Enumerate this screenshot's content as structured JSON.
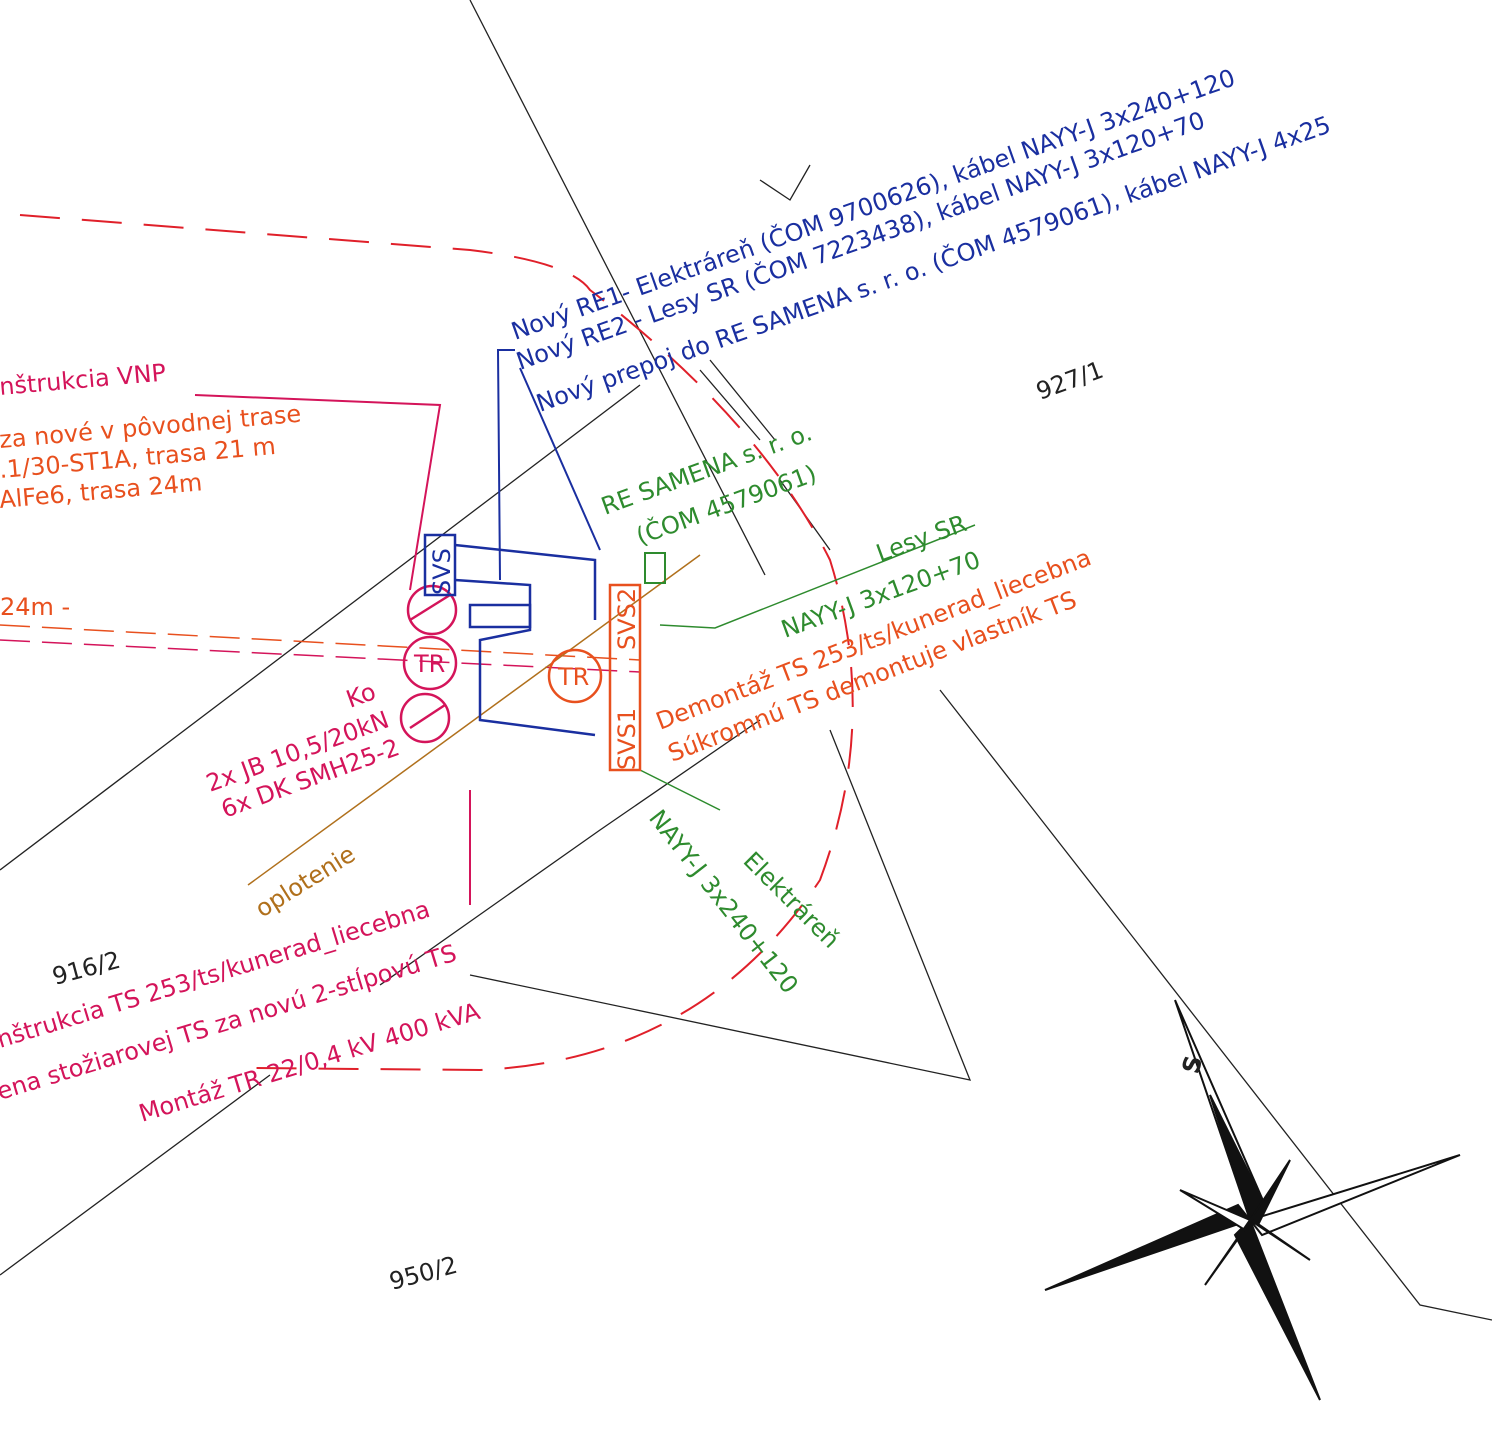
{
  "cables": {
    "line1": "Nový RE1- Elektráreň (ČOM 9700626), kábel NAYY-J 3x240+120",
    "line2": "Nový RE2 - Lesy SR (ČOM 7223438), kábel NAYY-J 3x120+70",
    "line3": "Nový prepoj do RE SAMENA s. r. o. (ČOM 4579061), kábel NAYY-J 4x25"
  },
  "parcels": {
    "p1": "927/1",
    "p2": "916/2",
    "p3": "950/2"
  },
  "vnp": {
    "lines": [
      "nštrukcia VNP",
      "za nové v pôvodnej trase",
      ".1/30-ST1A, trasa 21 m",
      "AlFe6, trasa 24m"
    ],
    "route": "24m -"
  },
  "samena": {
    "name": "RE SAMENA s. r. o.",
    "code": "(ČOM 4579061)"
  },
  "lesy": {
    "name": "Lesy SR",
    "cable": "NAYY-J 3x120+70"
  },
  "demontaz": {
    "line1": "Demontáž TS 253/ts/kunerad_liecebna",
    "line2": "Súkromnú TS demontuje vlastník TS"
  },
  "pole": {
    "ko": "Ko",
    "line1": "2x JB 10,5/20kN",
    "line2": "6x DK SMH25-2"
  },
  "symbols": {
    "tr1": "TR",
    "tr2": "TR",
    "svs": "SVS",
    "svs2": "SVS2",
    "svs1": "SVS1"
  },
  "fence": "oplotenie",
  "ts": {
    "lines": [
      "nštrukcia TS 253/ts/kunerad_liecebna",
      "ena stožiarovej TS za novú 2-stĺpovú TS",
      "Montáž TR 22/0,4 kV 400 kVA"
    ]
  },
  "elektraren": {
    "cable": "NAYY-J 3x240+120",
    "name": "Elektráreň"
  },
  "compass": "S"
}
